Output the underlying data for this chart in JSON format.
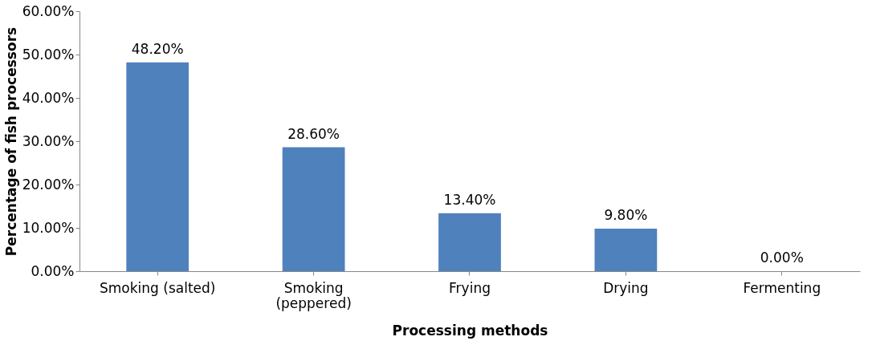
{
  "chart_data": {
    "type": "bar",
    "xlabel": "Processing methods",
    "ylabel": "Percentage of fish processors",
    "categories": [
      "Smoking (salted)",
      "Smoking (peppered)",
      "Frying",
      "Drying",
      "Fermenting"
    ],
    "values": [
      48.2,
      28.6,
      13.4,
      9.8,
      0
    ],
    "value_labels": [
      "48.20%",
      "28.60%",
      "13.40%",
      "9.80%",
      "0.00%"
    ],
    "color": "#4f81bd",
    "ylim": [
      0,
      60
    ],
    "yticks": [
      {
        "value": 0,
        "label": "0.00%"
      },
      {
        "value": 10,
        "label": "10.00%"
      },
      {
        "value": 20,
        "label": "20.00%"
      },
      {
        "value": 30,
        "label": "30.00%"
      },
      {
        "value": 40,
        "label": "40.00%"
      },
      {
        "value": 50,
        "label": "50.00%"
      },
      {
        "value": 60,
        "label": "60.00%"
      }
    ],
    "grid": false
  }
}
